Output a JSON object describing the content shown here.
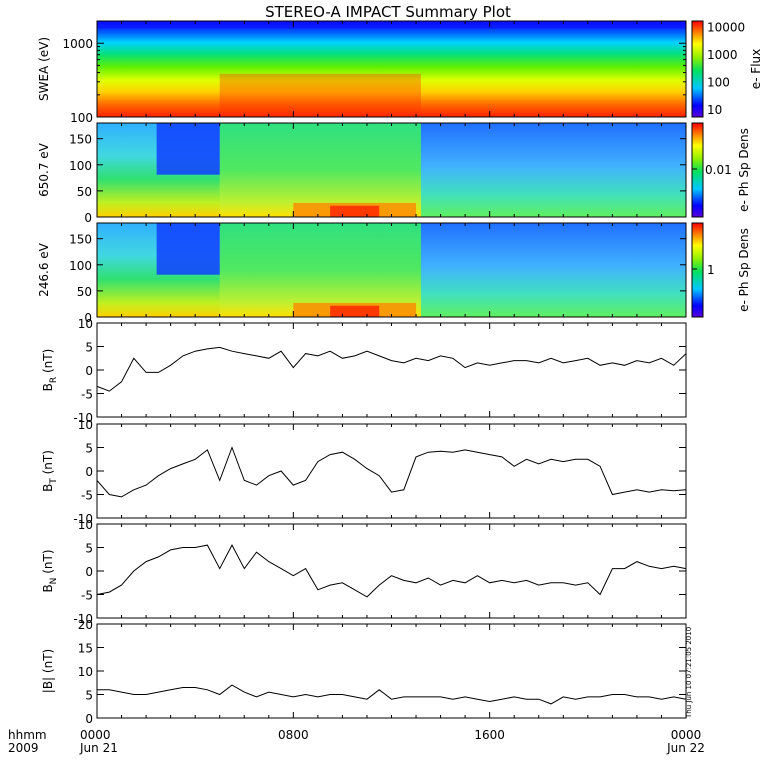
{
  "page": {
    "title": "STEREO-A IMPACT Summary Plot",
    "hhmm_label": "hhmm",
    "year_label": "2009",
    "start_date_label": "Jun 21",
    "end_date_label": "Jun 22",
    "timestamp": "Thu Jun 10 07:21:05 2010"
  },
  "chart_data": [
    {
      "type": "heatmap",
      "ylabel": "SWEA (eV)",
      "yscale": "log",
      "ylim": [
        100,
        2000
      ],
      "ytick_labels": [
        "100",
        "1000"
      ],
      "colorbar_label": "e- Flux",
      "colorbar_ticks": [
        "10",
        "100",
        "1000",
        "10000"
      ],
      "colorbar_scale": "log",
      "colormap": "rainbow",
      "description_time_shift_hours": [
        5.0,
        13.2
      ]
    },
    {
      "type": "heatmap",
      "ylabel": "650.7 eV",
      "ylim": [
        0,
        180
      ],
      "ytick_labels": [
        "0",
        "50",
        "100",
        "150"
      ],
      "colorbar_label": "e- Ph Sp Dens",
      "colorbar_ticks": [
        "0.01"
      ],
      "colormap": "rainbow"
    },
    {
      "type": "heatmap",
      "ylabel": "246.6 eV",
      "ylim": [
        0,
        180
      ],
      "ytick_labels": [
        "0",
        "50",
        "100",
        "150"
      ],
      "colorbar_label": "e- Ph Sp Dens",
      "colorbar_ticks": [
        "1"
      ],
      "colormap": "rainbow"
    },
    {
      "type": "line",
      "ylabel_main": "B",
      "ylabel_sub": "R",
      "ylabel_unit": "(nT)",
      "ylim": [
        -10,
        10
      ],
      "ytick_labels": [
        "-10",
        "-5",
        "0",
        "5",
        "10"
      ],
      "x": [
        0,
        0.5,
        1.0,
        1.5,
        2.0,
        2.5,
        3.0,
        3.5,
        4.0,
        4.5,
        5.0,
        5.5,
        6.0,
        6.5,
        7.0,
        7.5,
        8.0,
        8.5,
        9.0,
        9.5,
        10.0,
        10.5,
        11.0,
        11.5,
        12.0,
        12.5,
        13.0,
        13.5,
        14.0,
        14.5,
        15.0,
        15.5,
        16.0,
        16.5,
        17.0,
        17.5,
        18.0,
        18.5,
        19.0,
        19.5,
        20.0,
        20.5,
        21.0,
        21.5,
        22.0,
        22.5,
        23.0,
        23.5,
        24.0
      ],
      "y": [
        -3.5,
        -4.5,
        -2.5,
        2.5,
        -0.5,
        -0.5,
        1.0,
        3.0,
        4.0,
        4.5,
        4.8,
        4.0,
        3.5,
        3.0,
        2.5,
        4.0,
        0.5,
        3.5,
        3.0,
        4.0,
        2.5,
        3.0,
        4.0,
        3.0,
        2.0,
        1.5,
        2.5,
        2.0,
        3.0,
        2.5,
        0.5,
        1.5,
        1.0,
        1.5,
        2.0,
        2.0,
        1.5,
        2.5,
        1.5,
        2.0,
        2.5,
        1.0,
        1.5,
        1.0,
        2.0,
        1.5,
        2.5,
        1.0,
        3.5
      ]
    },
    {
      "type": "line",
      "ylabel_main": "B",
      "ylabel_sub": "T",
      "ylabel_unit": "(nT)",
      "ylim": [
        -10,
        10
      ],
      "ytick_labels": [
        "-10",
        "-5",
        "0",
        "5",
        "10"
      ],
      "x": [
        0,
        0.5,
        1.0,
        1.5,
        2.0,
        2.5,
        3.0,
        3.5,
        4.0,
        4.5,
        5.0,
        5.5,
        6.0,
        6.5,
        7.0,
        7.5,
        8.0,
        8.5,
        9.0,
        9.5,
        10.0,
        10.5,
        11.0,
        11.5,
        12.0,
        12.5,
        13.0,
        13.5,
        14.0,
        14.5,
        15.0,
        15.5,
        16.0,
        16.5,
        17.0,
        17.5,
        18.0,
        18.5,
        19.0,
        19.5,
        20.0,
        20.5,
        21.0,
        21.5,
        22.0,
        22.5,
        23.0,
        23.5,
        24.0
      ],
      "y": [
        -2.0,
        -5.0,
        -5.5,
        -4.0,
        -3.0,
        -1.0,
        0.5,
        1.5,
        2.5,
        4.5,
        -2.0,
        5.0,
        -2.0,
        -3.0,
        -1.0,
        0.0,
        -3.0,
        -2.0,
        2.0,
        3.5,
        4.0,
        2.5,
        0.5,
        -1.0,
        -4.5,
        -4.0,
        3.0,
        4.0,
        4.2,
        4.0,
        4.5,
        4.0,
        3.5,
        3.0,
        1.0,
        2.5,
        1.5,
        2.5,
        2.0,
        2.5,
        2.5,
        1.0,
        -5.0,
        -4.5,
        -4.0,
        -4.5,
        -4.0,
        -4.2,
        -4.0
      ]
    },
    {
      "type": "line",
      "ylabel_main": "B",
      "ylabel_sub": "N",
      "ylabel_unit": "(nT)",
      "ylim": [
        -10,
        10
      ],
      "ytick_labels": [
        "-10",
        "-5",
        "0",
        "5",
        "10"
      ],
      "x": [
        0,
        0.5,
        1.0,
        1.5,
        2.0,
        2.5,
        3.0,
        3.5,
        4.0,
        4.5,
        5.0,
        5.5,
        6.0,
        6.5,
        7.0,
        7.5,
        8.0,
        8.5,
        9.0,
        9.5,
        10.0,
        10.5,
        11.0,
        11.5,
        12.0,
        12.5,
        13.0,
        13.5,
        14.0,
        14.5,
        15.0,
        15.5,
        16.0,
        16.5,
        17.0,
        17.5,
        18.0,
        18.5,
        19.0,
        19.5,
        20.0,
        20.5,
        21.0,
        21.5,
        22.0,
        22.5,
        23.0,
        23.5,
        24.0
      ],
      "y": [
        -5.0,
        -4.5,
        -3.0,
        0.0,
        2.0,
        3.0,
        4.5,
        5.0,
        5.0,
        5.5,
        0.5,
        5.5,
        0.5,
        4.0,
        2.0,
        0.5,
        -1.0,
        0.5,
        -4.0,
        -3.0,
        -2.5,
        -4.0,
        -5.5,
        -3.0,
        -1.0,
        -2.0,
        -2.5,
        -1.5,
        -3.0,
        -2.0,
        -2.5,
        -1.0,
        -2.5,
        -2.0,
        -2.5,
        -2.0,
        -3.0,
        -2.5,
        -2.5,
        -3.0,
        -2.5,
        -5.0,
        0.5,
        0.5,
        2.0,
        1.0,
        0.5,
        1.0,
        0.5
      ]
    },
    {
      "type": "line",
      "ylabel": "|B| (nT)",
      "ylim": [
        0,
        20
      ],
      "ytick_labels": [
        "0",
        "5",
        "10",
        "15",
        "20"
      ],
      "x": [
        0,
        0.5,
        1.0,
        1.5,
        2.0,
        2.5,
        3.0,
        3.5,
        4.0,
        4.5,
        5.0,
        5.5,
        6.0,
        6.5,
        7.0,
        7.5,
        8.0,
        8.5,
        9.0,
        9.5,
        10.0,
        10.5,
        11.0,
        11.5,
        12.0,
        12.5,
        13.0,
        13.5,
        14.0,
        14.5,
        15.0,
        15.5,
        16.0,
        16.5,
        17.0,
        17.5,
        18.0,
        18.5,
        19.0,
        19.5,
        20.0,
        20.5,
        21.0,
        21.5,
        22.0,
        22.5,
        23.0,
        23.5,
        24.0
      ],
      "y": [
        6.0,
        6.0,
        5.5,
        5.0,
        5.0,
        5.5,
        6.0,
        6.5,
        6.5,
        6.0,
        5.0,
        7.0,
        5.5,
        4.5,
        5.5,
        5.0,
        4.5,
        5.0,
        4.5,
        5.0,
        5.0,
        4.5,
        4.0,
        6.0,
        4.0,
        4.5,
        4.5,
        4.5,
        4.5,
        4.0,
        4.5,
        4.0,
        3.5,
        4.0,
        4.5,
        4.0,
        4.0,
        3.0,
        4.5,
        4.0,
        4.5,
        4.5,
        5.0,
        5.0,
        4.5,
        4.5,
        4.0,
        4.5,
        4.0
      ]
    }
  ],
  "x_axis": {
    "tick_labels": [
      "0000",
      "0800",
      "1600",
      "0000"
    ],
    "tick_hours": [
      0,
      8,
      16,
      24
    ],
    "range_hours": [
      0,
      24
    ]
  }
}
